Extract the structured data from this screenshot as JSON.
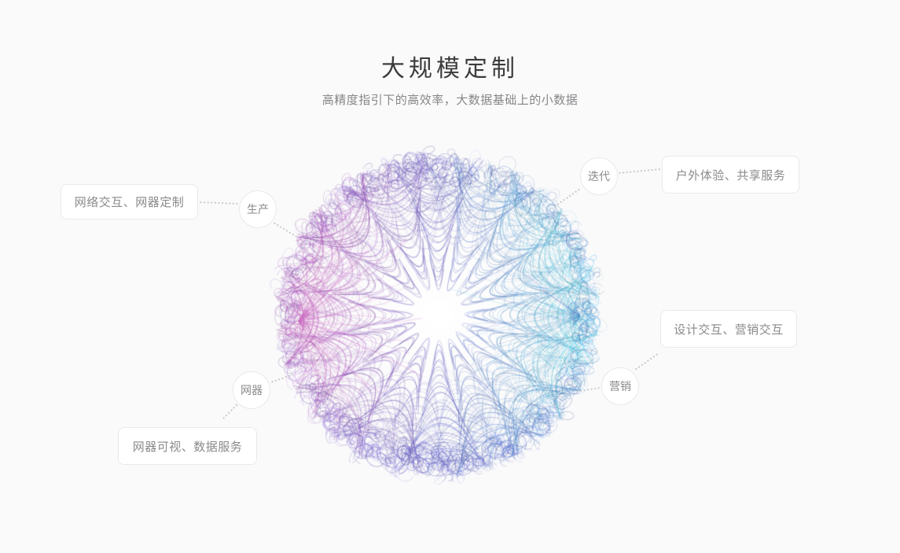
{
  "page": {
    "title": "大规模定制",
    "subtitle": "高精度指引下的高效率，大数据基础上的小数据"
  },
  "diagram": {
    "nodes": [
      {
        "label": "生产"
      },
      {
        "label": "迭代"
      },
      {
        "label": "营销"
      },
      {
        "label": "网器"
      }
    ],
    "cards": [
      {
        "label": "网络交互、网器定制"
      },
      {
        "label": "户外体验、共享服务"
      },
      {
        "label": "设计交互、营销交互"
      },
      {
        "label": "网器可视、数据服务"
      }
    ],
    "sphere_palette": {
      "left_magenta": "#b94aae",
      "top_indigo": "#5d58b8",
      "right_cyan": "#3fc7d7",
      "bottom_blue": "#5566c2",
      "rim_purple": "#7168cc",
      "accent_pink": "#d77fd0",
      "deep_indigo": "#4a4aa0"
    }
  },
  "colors": {
    "background": "#fafafa",
    "card_background": "#ffffff",
    "card_border": "#e9e9e9",
    "text_heading": "#3c3c3e",
    "text_secondary": "#87878a",
    "label_text": "#8a8a8a",
    "dotted_line": "#c9c9c9"
  }
}
